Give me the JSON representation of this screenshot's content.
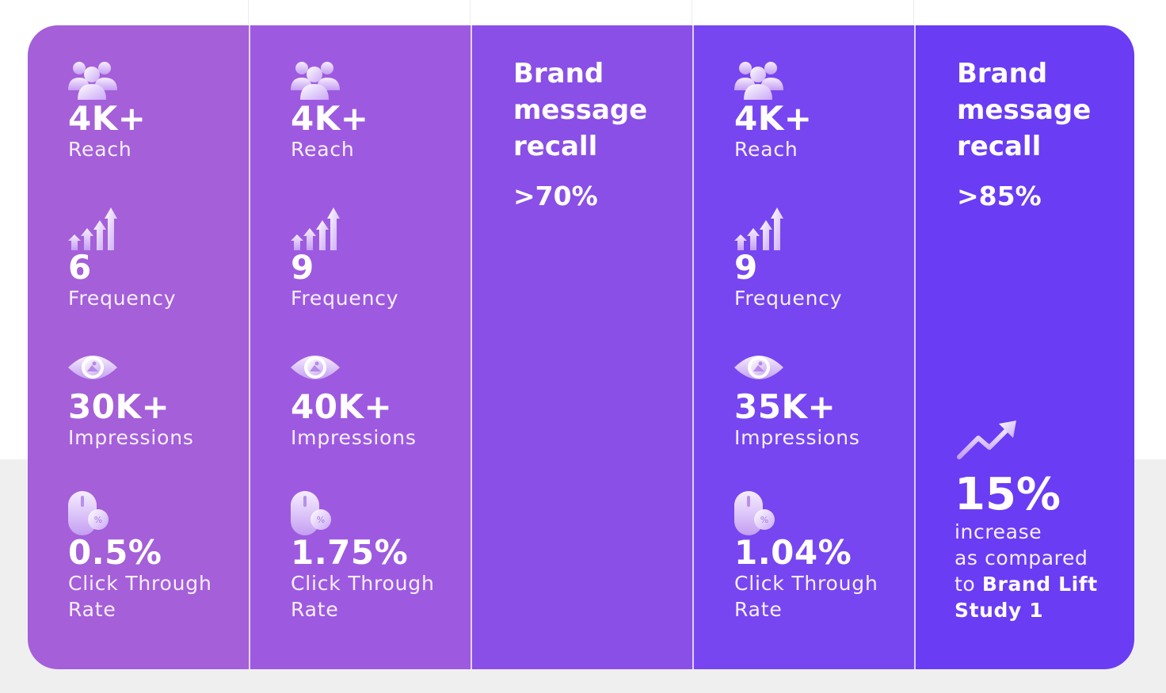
{
  "columns": [
    {
      "type": "metrics",
      "reach": {
        "icon": "users-icon",
        "value": "4K+",
        "label": "Reach"
      },
      "frequency": {
        "icon": "bar-growth-icon",
        "value": "6",
        "label": "Frequency"
      },
      "impressions": {
        "icon": "eye-icon",
        "value": "30K+",
        "label": "Impressions"
      },
      "ctr": {
        "icon": "mouse-percent-icon",
        "value": "0.5%",
        "label_line1": "Click Through",
        "label_line2": "Rate"
      }
    },
    {
      "type": "metrics",
      "reach": {
        "icon": "users-icon",
        "value": "4K+",
        "label": "Reach"
      },
      "frequency": {
        "icon": "bar-growth-icon",
        "value": "9",
        "label": "Frequency"
      },
      "impressions": {
        "icon": "eye-icon",
        "value": "40K+",
        "label": "Impressions"
      },
      "ctr": {
        "icon": "mouse-percent-icon",
        "value": "1.75%",
        "label_line1": "Click Through",
        "label_line2": "Rate"
      }
    },
    {
      "type": "recall",
      "title_line1": "Brand",
      "title_line2": "message",
      "title_line3": "recall",
      "value": ">70%"
    },
    {
      "type": "metrics",
      "reach": {
        "icon": "users-icon",
        "value": "4K+",
        "label": "Reach"
      },
      "frequency": {
        "icon": "bar-growth-icon",
        "value": "9",
        "label": "Frequency"
      },
      "impressions": {
        "icon": "eye-icon",
        "value": "35K+",
        "label": "Impressions"
      },
      "ctr": {
        "icon": "mouse-percent-icon",
        "value": "1.04%",
        "label_line1": "Click Through",
        "label_line2": "Rate"
      }
    },
    {
      "type": "recall",
      "title_line1": "Brand",
      "title_line2": "message",
      "title_line3": "recall",
      "value": ">85%",
      "lift": {
        "icon": "trend-up-icon",
        "value": "15%",
        "line1": "increase",
        "line2": "as compared",
        "line3_prefix": "to ",
        "line3_strong": "Brand Lift",
        "line4_strong": "Study 1"
      }
    }
  ],
  "colors": {
    "col1": "#a45fd9",
    "col2": "#9d5ae0",
    "col3": "#8a4fe6",
    "col4": "#7746f0",
    "col5": "#6a3cf4",
    "icon_light": "#f3e8ff",
    "icon_mid": "#c9a6f5"
  }
}
